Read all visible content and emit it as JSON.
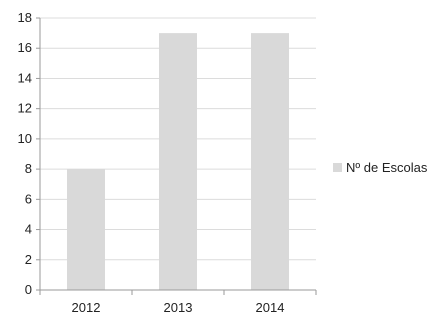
{
  "chart_data": {
    "type": "bar",
    "categories": [
      "2012",
      "2013",
      "2014"
    ],
    "series": [
      {
        "name": "Nº de Escolas",
        "values": [
          8,
          17,
          17
        ],
        "color": "#d9d9d9"
      }
    ],
    "title": "",
    "xlabel": "",
    "ylabel": "",
    "ylim": [
      0,
      18
    ],
    "yticks": [
      "0",
      "2",
      "4",
      "6",
      "8",
      "10",
      "12",
      "14",
      "16",
      "18"
    ],
    "grid": true,
    "legend_position": "right",
    "colors": {
      "bar": "#d9d9d9",
      "grid": "#dcdcdc",
      "axis": "#9a9a9a",
      "text": "#222222"
    }
  }
}
